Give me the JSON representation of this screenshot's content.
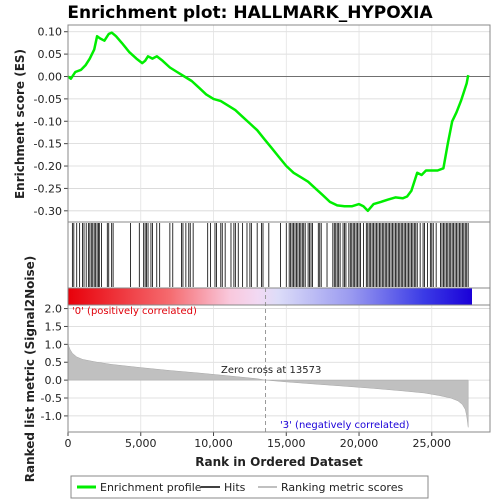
{
  "chart_data": [
    {
      "type": "line",
      "title": "Enrichment plot: HALLMARK_HYPOXIA",
      "ylabel": "Enrichment score (ES)",
      "ylim": [
        -0.325,
        0.115
      ],
      "yticks": [
        0.1,
        0.05,
        0.0,
        -0.05,
        -0.1,
        -0.15,
        -0.2,
        -0.25,
        -0.3
      ],
      "ytick_labels": [
        "0.10",
        "0.05",
        "0.00",
        "-0.05",
        "-0.10",
        "-0.15",
        "-0.20",
        "-0.25",
        "-0.30"
      ],
      "xlim": [
        0,
        29000
      ],
      "grid": true,
      "series": [
        {
          "name": "Enrichment profile",
          "color": "#00ee00",
          "x": [
            0,
            200,
            500,
            900,
            1200,
            1500,
            1800,
            2000,
            2200,
            2500,
            2800,
            3000,
            3300,
            3700,
            4200,
            4700,
            5100,
            5300,
            5500,
            5800,
            6100,
            6500,
            7000,
            7500,
            8000,
            8500,
            9000,
            9500,
            10000,
            10500,
            11000,
            11500,
            12000,
            12500,
            13000,
            13500,
            14000,
            14500,
            15000,
            15500,
            16000,
            16500,
            17000,
            17500,
            18000,
            18500,
            19000,
            19500,
            20000,
            20300,
            20600,
            21000,
            21500,
            22000,
            22500,
            23000,
            23300,
            23600,
            24000,
            24300,
            24600,
            25000,
            25400,
            25800,
            26100,
            26400,
            26700,
            27000,
            27200,
            27400,
            27500
          ],
          "y": [
            0.0,
            -0.005,
            0.01,
            0.015,
            0.025,
            0.04,
            0.06,
            0.09,
            0.085,
            0.08,
            0.095,
            0.098,
            0.09,
            0.075,
            0.055,
            0.04,
            0.03,
            0.035,
            0.045,
            0.04,
            0.045,
            0.035,
            0.02,
            0.01,
            0.0,
            -0.01,
            -0.025,
            -0.04,
            -0.05,
            -0.055,
            -0.065,
            -0.075,
            -0.09,
            -0.105,
            -0.12,
            -0.14,
            -0.16,
            -0.18,
            -0.2,
            -0.215,
            -0.225,
            -0.235,
            -0.25,
            -0.265,
            -0.28,
            -0.288,
            -0.29,
            -0.29,
            -0.285,
            -0.29,
            -0.3,
            -0.285,
            -0.28,
            -0.275,
            -0.27,
            -0.272,
            -0.268,
            -0.255,
            -0.215,
            -0.22,
            -0.21,
            -0.21,
            -0.21,
            -0.205,
            -0.15,
            -0.1,
            -0.08,
            -0.055,
            -0.035,
            -0.015,
            0.003
          ]
        }
      ]
    },
    {
      "type": "hits",
      "series": [
        {
          "name": "Hits",
          "color": "#000000",
          "x": [
            300,
            400,
            600,
            800,
            1000,
            1100,
            1250,
            1400,
            1500,
            1600,
            1700,
            1800,
            1900,
            2000,
            2100,
            2150,
            2300,
            2700,
            2800,
            3000,
            3100,
            4300,
            4900,
            5200,
            5300,
            5400,
            5500,
            5700,
            5800,
            6100,
            6300,
            7000,
            7200,
            7800,
            7900,
            8100,
            8300,
            8400,
            8600,
            9600,
            9800,
            10100,
            10200,
            10500,
            10600,
            10800,
            11200,
            11400,
            11500,
            11700,
            12000,
            12300,
            12500,
            12600,
            13000,
            13300,
            13400,
            13800,
            14600,
            15000,
            15200,
            15300,
            15400,
            15500,
            15600,
            15700,
            15800,
            15900,
            16000,
            16100,
            16200,
            16300,
            16500,
            16600,
            16700,
            16800,
            17200,
            17300,
            17400,
            17800,
            18200,
            18300,
            18400,
            18500,
            18600,
            18700,
            18900,
            19000,
            19100,
            19300,
            19400,
            19500,
            19600,
            19700,
            19800,
            19900,
            20000,
            20100,
            20300,
            20500,
            20600,
            20700,
            20800,
            20900,
            21000,
            21100,
            21200,
            21300,
            21400,
            21500,
            21600,
            21700,
            21800,
            21900,
            22000,
            22100,
            22200,
            22300,
            22400,
            22500,
            22600,
            22700,
            22800,
            22900,
            23000,
            23100,
            23200,
            23300,
            23400,
            23500,
            23600,
            23700,
            23800,
            23900,
            24000,
            24200,
            24400,
            24500,
            24700,
            24900,
            25000,
            25100,
            25300,
            25600,
            25700,
            25800,
            25900,
            26000,
            26100,
            26200,
            26300,
            26400,
            26500,
            26600,
            26700,
            26800,
            26900,
            27000,
            27100,
            27200,
            27300,
            27400,
            27500
          ]
        }
      ]
    },
    {
      "type": "area",
      "xlabel": "Rank in Ordered Dataset",
      "ylabel": "Ranked list metric (Signal2Noise)",
      "ylim": [
        -1.45,
        2.1
      ],
      "yticks": [
        2.0,
        1.5,
        1.0,
        0.5,
        0.0,
        -0.5,
        -1.0
      ],
      "ytick_labels": [
        "2.0",
        "1.5",
        "1.0",
        "0.5",
        "0.0",
        "-0.5",
        "-1.0"
      ],
      "xlim": [
        0,
        29000
      ],
      "xticks": [
        0,
        5000,
        10000,
        15000,
        20000,
        25000
      ],
      "xtick_labels": [
        "0",
        "5,000",
        "10,000",
        "15,000",
        "20,000",
        "25,000"
      ],
      "grid": true,
      "series": [
        {
          "name": "Ranking metric scores",
          "color": "#c0c0c0",
          "x": [
            0,
            50,
            150,
            300,
            600,
            1000,
            2000,
            3000,
            5000,
            7000,
            9000,
            11000,
            13000,
            13573,
            15000,
            17000,
            19000,
            21000,
            23000,
            24500,
            25500,
            26300,
            26800,
            27100,
            27300,
            27400,
            27500
          ],
          "y": [
            1.05,
            0.95,
            0.85,
            0.75,
            0.65,
            0.58,
            0.5,
            0.44,
            0.35,
            0.27,
            0.2,
            0.12,
            0.04,
            0.0,
            -0.05,
            -0.11,
            -0.17,
            -0.23,
            -0.3,
            -0.36,
            -0.43,
            -0.5,
            -0.58,
            -0.68,
            -0.82,
            -1.0,
            -1.32
          ]
        }
      ],
      "annotations": [
        "'0' (positively correlated)",
        "Zero cross at 13573",
        "'3' (negatively correlated)"
      ],
      "zero_cross": 13573
    }
  ],
  "legend": {
    "items": [
      {
        "label": "Enrichment profile",
        "color": "#00ee00"
      },
      {
        "label": "Hits",
        "color": "#000000"
      },
      {
        "label": "Ranking metric scores",
        "color": "#c0c0c0"
      }
    ]
  }
}
